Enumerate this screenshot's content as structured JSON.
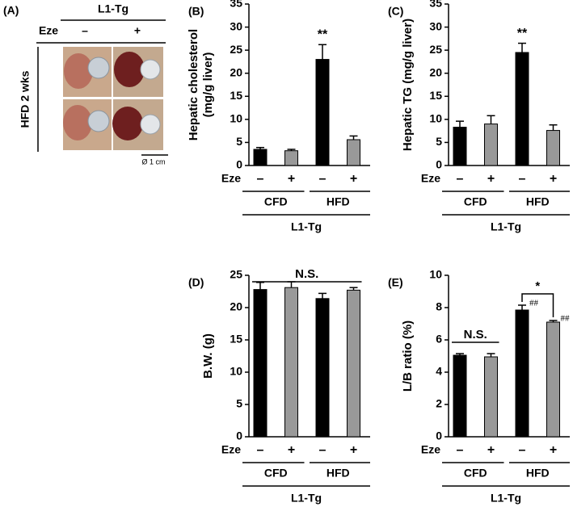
{
  "panel_a": {
    "label": "(A)",
    "group": "L1-Tg",
    "eze_label": "Eze",
    "eze_signs": [
      "–",
      "+"
    ],
    "row_label": "HFD 2 wks",
    "scale": "Ø 1 cm"
  },
  "chart_data": [
    {
      "type": "bar",
      "panel": "(B)",
      "ylabel": [
        "Hepatic cholesterol",
        "(mg/g liver)"
      ],
      "categories": [
        "–",
        "+",
        "–",
        "+"
      ],
      "category_label": "Eze",
      "groups": [
        "CFD",
        "HFD"
      ],
      "group_label": "L1-Tg",
      "values": [
        3.5,
        3.2,
        23,
        5.6
      ],
      "errors": [
        0.4,
        0.3,
        3.2,
        0.8
      ],
      "colors": [
        "#000000",
        "#999999",
        "#000000",
        "#999999"
      ],
      "ylim": [
        0,
        35
      ],
      "yticks": [
        0,
        5,
        10,
        15,
        20,
        25,
        30,
        35
      ],
      "annotations": [
        {
          "text": "**",
          "bars": [
            2
          ]
        }
      ]
    },
    {
      "type": "bar",
      "panel": "(C)",
      "ylabel": [
        "Hepatic TG (mg/g liver)"
      ],
      "categories": [
        "–",
        "+",
        "–",
        "+"
      ],
      "category_label": "Eze",
      "groups": [
        "CFD",
        "HFD"
      ],
      "group_label": "L1-Tg",
      "values": [
        8.3,
        9.0,
        24.5,
        7.6
      ],
      "errors": [
        1.3,
        1.8,
        2.0,
        1.2
      ],
      "colors": [
        "#000000",
        "#999999",
        "#000000",
        "#999999"
      ],
      "ylim": [
        0,
        35
      ],
      "yticks": [
        0,
        5,
        10,
        15,
        20,
        25,
        30,
        35
      ],
      "annotations": [
        {
          "text": "**",
          "bars": [
            2
          ]
        }
      ]
    },
    {
      "type": "bar",
      "panel": "(D)",
      "ylabel": [
        "B.W. (g)"
      ],
      "categories": [
        "–",
        "+",
        "–",
        "+"
      ],
      "category_label": "Eze",
      "groups": [
        "CFD",
        "HFD"
      ],
      "group_label": "L1-Tg",
      "values": [
        22.8,
        23.1,
        21.4,
        22.7
      ],
      "errors": [
        1.1,
        0.9,
        0.8,
        0.4
      ],
      "colors": [
        "#000000",
        "#999999",
        "#000000",
        "#999999"
      ],
      "ylim": [
        0,
        25
      ],
      "yticks": [
        0,
        5,
        10,
        15,
        20,
        25
      ],
      "annotations": [
        {
          "text": "N.S.",
          "bars": [
            0,
            3
          ]
        }
      ]
    },
    {
      "type": "bar",
      "panel": "(E)",
      "ylabel": [
        "L/B ratio (%)"
      ],
      "categories": [
        "–",
        "+",
        "–",
        "+"
      ],
      "category_label": "Eze",
      "groups": [
        "CFD",
        "HFD"
      ],
      "group_label": "L1-Tg",
      "values": [
        5.05,
        4.95,
        7.85,
        7.1
      ],
      "errors": [
        0.1,
        0.2,
        0.3,
        0.1
      ],
      "colors": [
        "#000000",
        "#999999",
        "#000000",
        "#999999"
      ],
      "ylim": [
        0,
        10
      ],
      "yticks": [
        0,
        2,
        4,
        6,
        8,
        10
      ],
      "annotations": [
        {
          "text": "N.S.",
          "bars": [
            0,
            1
          ]
        },
        {
          "text": "*",
          "bars": [
            2,
            3
          ]
        },
        {
          "text": "##",
          "bars": [
            2
          ],
          "position": "right"
        },
        {
          "text": "##",
          "bars": [
            3
          ],
          "position": "right"
        }
      ]
    }
  ]
}
